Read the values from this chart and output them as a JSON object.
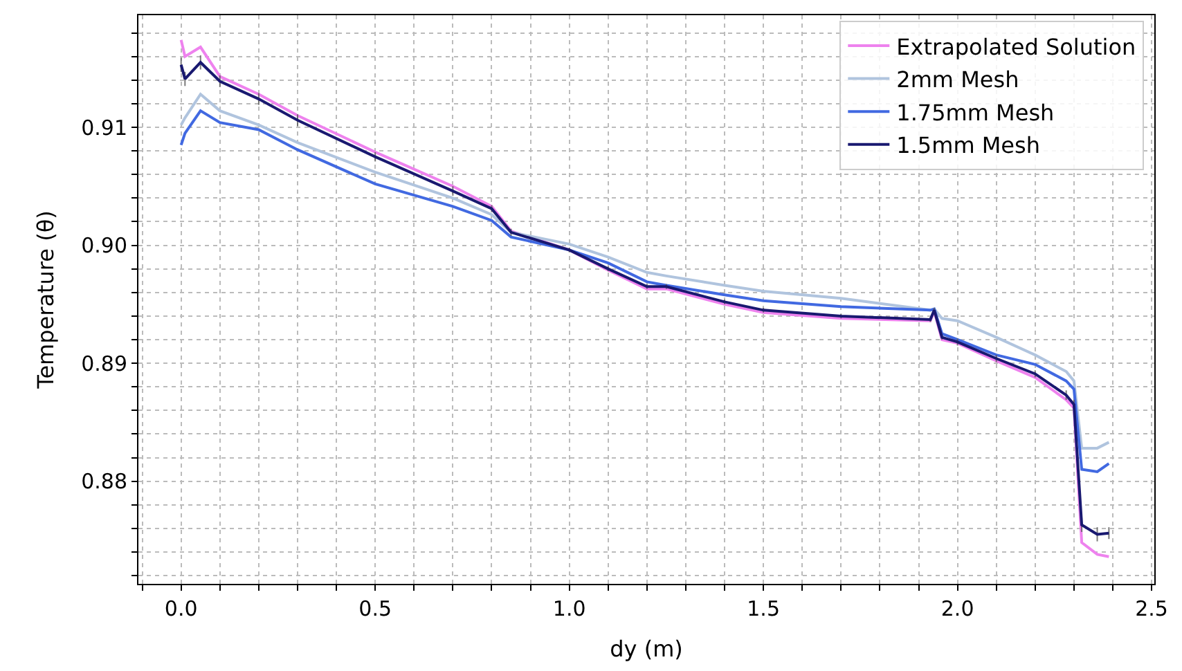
{
  "chart_data": {
    "type": "line",
    "xlabel": "dy (m)",
    "ylabel": "Temperature (θ)",
    "x": [
      0,
      0.01,
      0.05,
      0.1,
      0.2,
      0.3,
      0.5,
      0.7,
      0.8,
      0.85,
      1.0,
      1.1,
      1.2,
      1.25,
      1.4,
      1.5,
      1.7,
      1.93,
      1.94,
      1.96,
      2.0,
      2.1,
      2.2,
      2.28,
      2.3,
      2.32,
      2.36,
      2.39
    ],
    "series": [
      {
        "name": "Extrapolated Solution",
        "color": "#ee82ee",
        "values": [
          0.9174,
          0.916,
          0.9168,
          0.9143,
          0.9128,
          0.911,
          0.9079,
          0.905,
          0.9033,
          0.9012,
          0.8996,
          0.8979,
          0.8963,
          0.8963,
          0.895,
          0.8943,
          0.8938,
          0.8936,
          0.8944,
          0.892,
          0.8917,
          0.8902,
          0.8888,
          0.8869,
          0.8862,
          0.8748,
          0.8738,
          0.8736
        ]
      },
      {
        "name": "2mm Mesh",
        "color": "#b0c4de",
        "values": [
          0.9102,
          0.9108,
          0.9128,
          0.9114,
          0.9102,
          0.9087,
          0.9062,
          0.904,
          0.9026,
          0.9011,
          0.9001,
          0.899,
          0.8977,
          0.8974,
          0.8966,
          0.8961,
          0.8955,
          0.8945,
          0.8946,
          0.8938,
          0.8936,
          0.8922,
          0.8907,
          0.8893,
          0.8885,
          0.8828,
          0.8828,
          0.8833
        ]
      },
      {
        "name": "1.75mm Mesh",
        "color": "#4169e1",
        "values": [
          0.9085,
          0.9095,
          0.9114,
          0.9104,
          0.9098,
          0.9081,
          0.9052,
          0.9033,
          0.9021,
          0.9007,
          0.8996,
          0.8985,
          0.8969,
          0.8966,
          0.8958,
          0.8953,
          0.8948,
          0.8945,
          0.8946,
          0.8925,
          0.892,
          0.8907,
          0.8899,
          0.8885,
          0.8878,
          0.881,
          0.8808,
          0.8815
        ]
      },
      {
        "name": "1.5mm Mesh",
        "color": "#191970",
        "values": [
          0.9153,
          0.9141,
          0.9155,
          0.9139,
          0.9124,
          0.9106,
          0.9075,
          0.9046,
          0.9031,
          0.9011,
          0.8996,
          0.898,
          0.8965,
          0.8965,
          0.8952,
          0.8945,
          0.894,
          0.8937,
          0.8945,
          0.8922,
          0.8918,
          0.8904,
          0.8891,
          0.8873,
          0.8865,
          0.8763,
          0.8755,
          0.8756
        ],
        "errors": [
          0.0006,
          0.0006,
          0.0006,
          0.0005,
          0.0005,
          0.0005,
          0.0004,
          0.0004,
          0.0003,
          0.0003,
          0.0002,
          0.0002,
          0.0002,
          0.0002,
          0.0002,
          0.0002,
          0.0002,
          0.0002,
          0.0002,
          0.0002,
          0.0003,
          0.0003,
          0.0003,
          0.0004,
          0.0004,
          0.0006,
          0.0006,
          0.0005
        ]
      }
    ],
    "xlim": [
      -0.11,
      2.507
    ],
    "xticks": [
      {
        "value": 0.0,
        "label": "0.0"
      },
      {
        "value": 0.5,
        "label": "0.5"
      },
      {
        "value": 1.0,
        "label": "1.0"
      },
      {
        "value": 1.5,
        "label": "1.5"
      },
      {
        "value": 2.0,
        "label": "2.0"
      },
      {
        "value": 2.5,
        "label": "2.5"
      },
      {
        "value": -0.1,
        "label": null
      },
      {
        "value": 0.1,
        "label": null
      },
      {
        "value": 0.2,
        "label": null
      },
      {
        "value": 0.3,
        "label": null
      },
      {
        "value": 0.4,
        "label": null
      },
      {
        "value": 0.6,
        "label": null
      },
      {
        "value": 0.7,
        "label": null
      },
      {
        "value": 0.8,
        "label": null
      },
      {
        "value": 0.9,
        "label": null
      },
      {
        "value": 1.1,
        "label": null
      },
      {
        "value": 1.2,
        "label": null
      },
      {
        "value": 1.3,
        "label": null
      },
      {
        "value": 1.4,
        "label": null
      },
      {
        "value": 1.6,
        "label": null
      },
      {
        "value": 1.7,
        "label": null
      },
      {
        "value": 1.8,
        "label": null
      },
      {
        "value": 1.9,
        "label": null
      },
      {
        "value": 2.1,
        "label": null
      },
      {
        "value": 2.2,
        "label": null
      },
      {
        "value": 2.3,
        "label": null
      },
      {
        "value": 2.4,
        "label": null
      }
    ],
    "ylim": [
      0.8713,
      0.9195
    ],
    "yticks": [
      {
        "value": 0.88,
        "label": "0.88"
      },
      {
        "value": 0.89,
        "label": "0.89"
      },
      {
        "value": 0.9,
        "label": "0.90"
      },
      {
        "value": 0.91,
        "label": "0.91"
      },
      {
        "value": 0.872,
        "label": null
      },
      {
        "value": 0.874,
        "label": null
      },
      {
        "value": 0.876,
        "label": null
      },
      {
        "value": 0.878,
        "label": null
      },
      {
        "value": 0.882,
        "label": null
      },
      {
        "value": 0.884,
        "label": null
      },
      {
        "value": 0.886,
        "label": null
      },
      {
        "value": 0.888,
        "label": null
      },
      {
        "value": 0.892,
        "label": null
      },
      {
        "value": 0.894,
        "label": null
      },
      {
        "value": 0.896,
        "label": null
      },
      {
        "value": 0.898,
        "label": null
      },
      {
        "value": 0.902,
        "label": null
      },
      {
        "value": 0.904,
        "label": null
      },
      {
        "value": 0.906,
        "label": null
      },
      {
        "value": 0.908,
        "label": null
      },
      {
        "value": 0.912,
        "label": null
      },
      {
        "value": 0.914,
        "label": null
      },
      {
        "value": 0.916,
        "label": null
      },
      {
        "value": 0.918,
        "label": null
      }
    ],
    "grid": true,
    "legend": "top right",
    "line_style": "solid",
    "marker": "none"
  }
}
